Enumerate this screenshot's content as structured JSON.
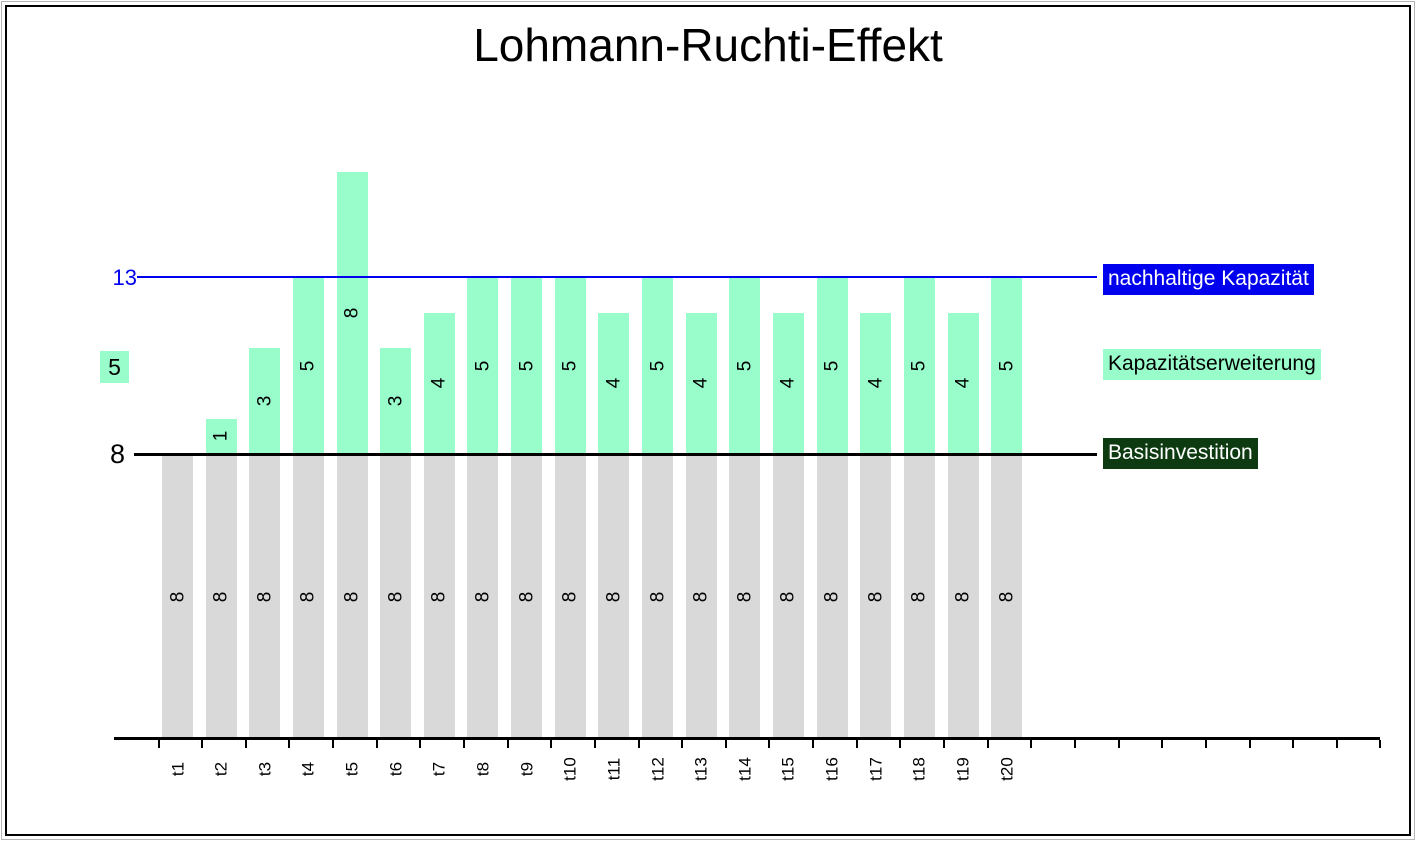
{
  "title": "Lohmann-Ruchti-Effekt",
  "left_labels": {
    "sustainable_capacity_value": "13",
    "annual_reinvestment_value": "5",
    "base_investment_value": "8"
  },
  "legend": {
    "sustainable_capacity": {
      "label": "nachhaltige Kapazität",
      "bg": "#0000ee",
      "fg": "#ffffff"
    },
    "capacity_expansion": {
      "label": "Kapazitätserweiterung",
      "bg": "#99fccb",
      "fg": "#000000"
    },
    "base_investment": {
      "label": "Basisinvestition",
      "bg": "#0e3a12",
      "fg": "#ffffff"
    }
  },
  "chart_data": {
    "type": "bar",
    "stacked": true,
    "title": "Lohmann-Ruchti-Effekt",
    "categories": [
      "t1",
      "t2",
      "t3",
      "t4",
      "t5",
      "t6",
      "t7",
      "t8",
      "t9",
      "t10",
      "t11",
      "t12",
      "t13",
      "t14",
      "t15",
      "t16",
      "t17",
      "t18",
      "t19",
      "t20"
    ],
    "series": [
      {
        "name": "Basisinvestition",
        "color": "#d9d9d9",
        "values": [
          8,
          8,
          8,
          8,
          8,
          8,
          8,
          8,
          8,
          8,
          8,
          8,
          8,
          8,
          8,
          8,
          8,
          8,
          8,
          8
        ]
      },
      {
        "name": "Kapazitätserweiterung",
        "color": "#99fccb",
        "values": [
          0,
          1,
          3,
          5,
          8,
          3,
          4,
          5,
          5,
          5,
          4,
          5,
          4,
          5,
          4,
          5,
          4,
          5,
          4,
          5
        ]
      }
    ],
    "reference_lines": [
      {
        "name": "nachhaltige Kapazität",
        "value": 13,
        "color": "#0000ee",
        "axis_label": "13"
      },
      {
        "name": "Basisinvestition",
        "value": 8,
        "color": "#000000",
        "axis_label": "8"
      }
    ],
    "ylim": [
      0,
      16
    ],
    "xlabel": "",
    "ylabel": "",
    "grid": false,
    "legend_position": "right",
    "bar_labels": "value, rotated 90° counterclockwise, centered in each segment",
    "x_axis_note": "axis extends beyond t20 with unlabeled ticks"
  }
}
